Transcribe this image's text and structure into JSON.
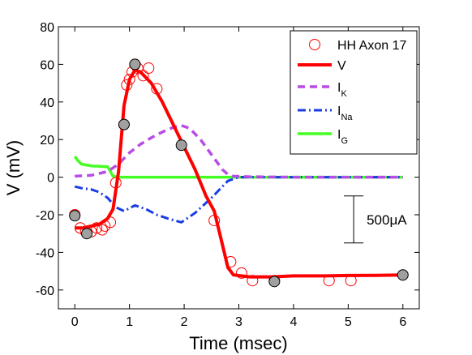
{
  "chart_data": {
    "type": "line",
    "xlabel": "Time (msec)",
    "ylabel": "V (mV)",
    "xlim": [
      -0.3,
      6.3
    ],
    "ylim": [
      -70,
      80
    ],
    "xticks": [
      0,
      1,
      2,
      3,
      4,
      5,
      6
    ],
    "yticks": [
      -60,
      -40,
      -20,
      0,
      20,
      40,
      60,
      80
    ],
    "grid": false,
    "legend_position": "top-right",
    "legend": [
      {
        "key": "hh",
        "label": "HH Axon 17",
        "sub": ""
      },
      {
        "key": "V",
        "label": "V",
        "sub": ""
      },
      {
        "key": "IK",
        "label": "I",
        "sub": "K"
      },
      {
        "key": "INa",
        "label": "I",
        "sub": "Na"
      },
      {
        "key": "IG",
        "label": "I",
        "sub": "G"
      }
    ],
    "colors": {
      "V": "#ff0000",
      "IK": "#b84ce6",
      "INa": "#1a3ce6",
      "IG": "#44ff22",
      "hh_marker": "#ff0000",
      "sample_marker": "#a0a0a0"
    },
    "series": [
      {
        "key": "V",
        "name": "V",
        "style": "solid",
        "x": [
          0.0,
          0.15,
          0.3,
          0.45,
          0.6,
          0.7,
          0.8,
          0.9,
          1.0,
          1.1,
          1.2,
          1.4,
          1.6,
          1.8,
          2.0,
          2.2,
          2.4,
          2.55,
          2.7,
          2.8,
          2.9,
          3.2,
          3.6,
          4.0,
          4.6,
          5.0,
          5.5,
          6.0
        ],
        "y": [
          -27,
          -27,
          -26,
          -25,
          -22,
          -17,
          3,
          38,
          52,
          57,
          56,
          50,
          40,
          28,
          16,
          4,
          -10,
          -18,
          -36,
          -48,
          -52,
          -53,
          -53,
          -52.5,
          -52.5,
          -52.3,
          -52.2,
          -52
        ]
      },
      {
        "key": "IK",
        "name": "I_K",
        "style": "dashed",
        "x": [
          0.0,
          0.3,
          0.6,
          0.8,
          1.0,
          1.2,
          1.4,
          1.6,
          1.8,
          1.95,
          2.1,
          2.3,
          2.5,
          2.7,
          2.8,
          2.9,
          3.2,
          4.0,
          5.0,
          6.0
        ],
        "y": [
          0.5,
          1,
          3,
          7,
          13,
          17.5,
          21,
          24,
          26.5,
          27.5,
          26,
          20,
          12,
          4,
          1.5,
          0.5,
          0.2,
          0,
          0,
          0
        ]
      },
      {
        "key": "INa",
        "name": "I_Na",
        "style": "dashdot",
        "x": [
          0.0,
          0.15,
          0.3,
          0.45,
          0.6,
          0.75,
          0.9,
          1.1,
          1.3,
          1.5,
          1.7,
          1.95,
          2.2,
          2.5,
          2.8,
          3.0,
          3.5,
          4.5,
          6.0
        ],
        "y": [
          -5,
          -6,
          -6.5,
          -8,
          -11,
          -16,
          -18,
          -15,
          -17,
          -20,
          -22,
          -24,
          -19,
          -11,
          -2,
          0,
          0,
          0,
          0
        ]
      },
      {
        "key": "IG",
        "name": "I_G",
        "style": "solid",
        "x": [
          0.0,
          0.05,
          0.12,
          0.2,
          0.3,
          0.45,
          0.6,
          0.65,
          0.7,
          0.8,
          1.0,
          2.0,
          3.0,
          4.0,
          6.0
        ],
        "y": [
          11,
          9,
          7,
          6.5,
          6,
          5.8,
          5.5,
          3,
          0.5,
          0,
          0,
          0,
          0,
          0,
          0
        ]
      }
    ],
    "hh_points": {
      "name": "HH Axon 17",
      "x": [
        0.0,
        0.1,
        0.2,
        0.3,
        0.4,
        0.5,
        0.55,
        0.65,
        0.75,
        0.9,
        0.95,
        1.0,
        1.05,
        1.1,
        1.15,
        1.25,
        1.35,
        1.5,
        2.55,
        2.85,
        3.05,
        3.25,
        3.65,
        4.65,
        5.05
      ],
      "y": [
        -20,
        -27,
        -29,
        -29,
        -27,
        -28,
        -26,
        -24,
        -3,
        28,
        49,
        52,
        56,
        60,
        58,
        54,
        58,
        47,
        -23,
        -45,
        -51,
        -55,
        -55,
        -55,
        -55
      ]
    },
    "sample_points": {
      "x": [
        0.0,
        0.22,
        0.9,
        1.1,
        1.95,
        3.65,
        6.0
      ],
      "y": [
        -20.5,
        -30,
        28,
        60,
        17,
        -55.5,
        -52
      ]
    },
    "scale_bar": {
      "value_top": -10,
      "value_bottom": -35,
      "x": 5.1,
      "label": "500μA"
    }
  }
}
